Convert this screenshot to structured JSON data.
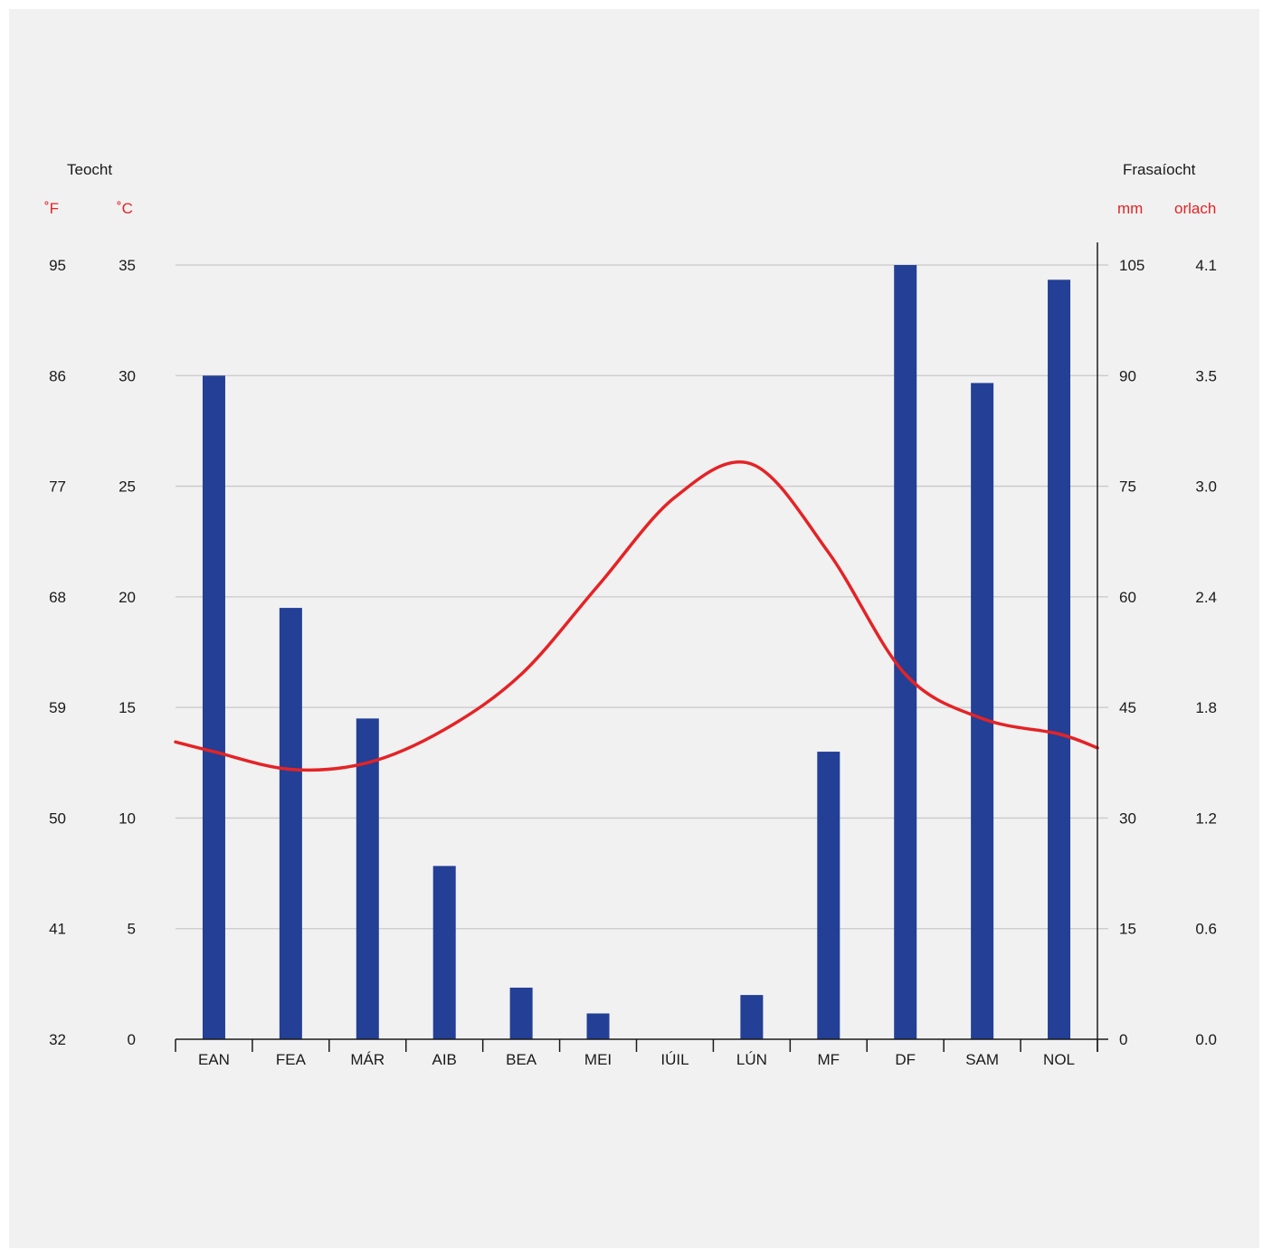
{
  "chart_data": {
    "type": "bar",
    "categories": [
      "EAN",
      "FEA",
      "MÁR",
      "AIB",
      "BEA",
      "MEI",
      "IÚIL",
      "LÚN",
      "MF",
      "DF",
      "SAM",
      "NOL"
    ],
    "left_axis": {
      "title": "Teocht",
      "unit_f": "˚F",
      "unit_c": "˚C",
      "ticks_c": [
        "0",
        "5",
        "10",
        "15",
        "20",
        "25",
        "30",
        "35"
      ],
      "ticks_f": [
        "32",
        "41",
        "50",
        "59",
        "68",
        "77",
        "86",
        "95"
      ],
      "range_c": [
        0,
        35
      ]
    },
    "right_axis": {
      "title": "Frasaíocht",
      "unit_mm": "mm",
      "unit_in": "orlach",
      "ticks_mm": [
        "0",
        "15",
        "30",
        "45",
        "60",
        "75",
        "90",
        "105"
      ],
      "ticks_in": [
        "0.0",
        "0.6",
        "1.2",
        "1.8",
        "2.4",
        "3.0",
        "3.5",
        "4.1"
      ],
      "range_mm": [
        0,
        105
      ]
    },
    "grid": true,
    "series": [
      {
        "type": "bar",
        "axis": "right",
        "unit": "mm",
        "values": [
          90,
          58.5,
          43.5,
          23.5,
          7,
          3.5,
          0,
          6,
          39,
          105,
          89,
          103
        ]
      },
      {
        "type": "line",
        "axis": "left",
        "unit": "°C",
        "values": [
          13,
          12.2,
          12.5,
          14,
          16.5,
          20.5,
          24.5,
          26,
          22,
          16.5,
          14.5,
          13.8
        ]
      }
    ],
    "colors": {
      "bars": "#233f96",
      "line": "#e42326",
      "grid": "#c9c9c9",
      "axis": "#1a1a1a",
      "unit_text": "#e42326"
    }
  }
}
